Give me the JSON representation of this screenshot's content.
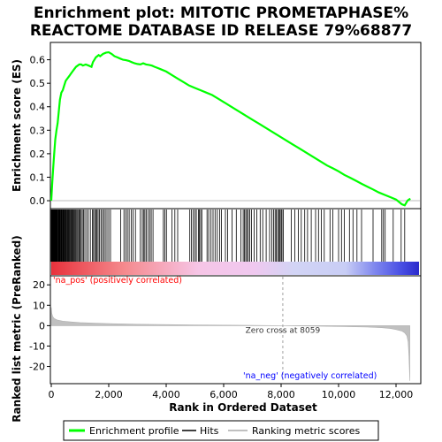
{
  "chart_data": {
    "type": "line",
    "title_lines": [
      "Enrichment plot: MITOTIC PROMETAPHASE%",
      "REACTOME DATABASE ID RELEASE 79%68877"
    ],
    "top_panel": {
      "ylabel": "Enrichment score (ES)",
      "ylim": [
        -0.03,
        0.67
      ],
      "yticks": [
        0.0,
        0.1,
        0.2,
        0.3,
        0.4,
        0.5,
        0.6
      ],
      "ytick_labels": [
        "0.0",
        "0.1",
        "0.2",
        "0.3",
        "0.4",
        "0.5",
        "0.6"
      ],
      "series": [
        {
          "name": "Enrichment profile",
          "color": "#00ff00",
          "x": [
            0,
            30,
            60,
            100,
            140,
            180,
            220,
            260,
            300,
            350,
            400,
            450,
            500,
            560,
            620,
            680,
            740,
            800,
            860,
            920,
            980,
            1040,
            1100,
            1200,
            1300,
            1400,
            1450,
            1500,
            1550,
            1600,
            1650,
            1700,
            1800,
            1900,
            2000,
            2100,
            2200,
            2300,
            2400,
            2500,
            2600,
            2700,
            2800,
            2900,
            3000,
            3100,
            3200,
            3300,
            3400,
            3500,
            3600,
            3700,
            3800,
            4000,
            4200,
            4400,
            4600,
            4800,
            5000,
            5200,
            5400,
            5600,
            5800,
            6000,
            6200,
            6400,
            6600,
            6800,
            7000,
            7200,
            7400,
            7600,
            7800,
            8000,
            8200,
            8400,
            8600,
            8800,
            9000,
            9200,
            9400,
            9600,
            9800,
            10000,
            10200,
            10400,
            10600,
            10800,
            11000,
            11200,
            11400,
            11600,
            11800,
            12000,
            12100,
            12200,
            12300,
            12350,
            12400,
            12450,
            12500
          ],
          "y": [
            0.0,
            0.07,
            0.13,
            0.2,
            0.26,
            0.3,
            0.33,
            0.38,
            0.43,
            0.46,
            0.47,
            0.49,
            0.51,
            0.52,
            0.53,
            0.54,
            0.55,
            0.56,
            0.57,
            0.575,
            0.58,
            0.58,
            0.575,
            0.58,
            0.575,
            0.57,
            0.59,
            0.6,
            0.61,
            0.615,
            0.62,
            0.615,
            0.625,
            0.63,
            0.632,
            0.625,
            0.615,
            0.61,
            0.605,
            0.6,
            0.598,
            0.595,
            0.59,
            0.585,
            0.582,
            0.58,
            0.585,
            0.58,
            0.578,
            0.575,
            0.57,
            0.565,
            0.56,
            0.55,
            0.535,
            0.52,
            0.505,
            0.49,
            0.48,
            0.47,
            0.46,
            0.45,
            0.435,
            0.42,
            0.405,
            0.39,
            0.375,
            0.36,
            0.345,
            0.33,
            0.315,
            0.3,
            0.285,
            0.27,
            0.255,
            0.24,
            0.225,
            0.21,
            0.195,
            0.18,
            0.165,
            0.15,
            0.138,
            0.125,
            0.11,
            0.098,
            0.085,
            0.072,
            0.06,
            0.048,
            0.035,
            0.025,
            0.015,
            0.005,
            -0.005,
            -0.015,
            -0.02,
            -0.01,
            0.0,
            0.005,
            0.008
          ]
        }
      ]
    },
    "hits_panel": {
      "hit_ranks": [
        0,
        8,
        16,
        24,
        32,
        40,
        50,
        60,
        72,
        85,
        98,
        112,
        128,
        145,
        160,
        178,
        195,
        212,
        230,
        250,
        268,
        288,
        305,
        325,
        345,
        365,
        385,
        405,
        428,
        450,
        470,
        492,
        515,
        538,
        560,
        585,
        610,
        635,
        660,
        688,
        715,
        742,
        770,
        800,
        830,
        860,
        895,
        930,
        965,
        1000,
        1040,
        1080,
        1120,
        1170,
        1230,
        1290,
        1360,
        1430,
        1470,
        1510,
        1550,
        1590,
        1630,
        1680,
        1730,
        1780,
        1830,
        1880,
        1940,
        2000,
        2060,
        2420,
        2530,
        2590,
        2650,
        2710,
        2780,
        2850,
        2930,
        3100,
        3170,
        3220,
        3260,
        3310,
        3370,
        3430,
        3480,
        3540,
        3900,
        3950,
        4010,
        4200,
        4300,
        4400,
        4820,
        4880,
        4940,
        5000,
        5050,
        5120,
        5150,
        5200,
        5240,
        5420,
        5480,
        5560,
        5630,
        5700,
        5780,
        5860,
        5920,
        6060,
        6140,
        6290,
        6440,
        6600,
        6680,
        6720,
        6770,
        6810,
        6860,
        6910,
        6970,
        7060,
        7150,
        7270,
        7360,
        7480,
        7600,
        7680,
        7740,
        7790,
        7830,
        7880,
        7920,
        7960,
        8000,
        8030,
        8080,
        8350,
        8480,
        8600,
        8700,
        8820,
        8920,
        9050,
        9200,
        9300,
        9400,
        9500,
        9700,
        9800,
        10000,
        10100,
        10200,
        10380,
        10500,
        10640,
        10800,
        11200,
        11500,
        11560,
        11620,
        11900,
        12180,
        12300
      ]
    },
    "bottom_panel": {
      "ylabel": "Ranked list metric (PreRanked)",
      "xlabel": "Rank in Ordered Dataset",
      "ylim": [
        -28,
        24
      ],
      "yticks": [
        20,
        10,
        0,
        -10,
        -20
      ],
      "ytick_labels": [
        "20",
        "10",
        "0",
        "-10",
        "-20"
      ],
      "xlim": [
        0,
        12800
      ],
      "xticks": [
        0,
        2000,
        4000,
        6000,
        8000,
        10000,
        12000
      ],
      "xtick_labels": [
        "0",
        "2,000",
        "4,000",
        "6,000",
        "8,000",
        "10,000",
        "12,000"
      ],
      "metric_profile": {
        "x": [
          0,
          20,
          50,
          100,
          200,
          400,
          700,
          1000,
          1500,
          2000,
          3000,
          4000,
          5000,
          6000,
          7000,
          8059,
          9000,
          10000,
          11000,
          11500,
          11800,
          12000,
          12200,
          12300,
          12380,
          12420,
          12450,
          12480
        ],
        "y": [
          9,
          6,
          4.5,
          3.5,
          2.8,
          2.2,
          1.8,
          1.5,
          1.2,
          1.0,
          0.7,
          0.5,
          0.35,
          0.25,
          0.12,
          0.0,
          -0.2,
          -0.4,
          -0.7,
          -1.0,
          -1.4,
          -1.9,
          -2.6,
          -3.5,
          -5,
          -8,
          -15,
          -27
        ]
      },
      "zero_cross_label": "Zero cross at 8059",
      "zero_cross_rank": 8059,
      "pos_label": "'na_pos' (positively correlated)",
      "neg_label": "'na_neg' (negatively correlated)"
    },
    "legend": {
      "items": [
        {
          "label": "Enrichment profile",
          "color": "#00ff00"
        },
        {
          "label": "Hits",
          "color": "#000000"
        },
        {
          "label": "Ranking metric scores",
          "color": "#c0c0c0"
        }
      ]
    },
    "colors": {
      "pos_band": "#ff0000",
      "neg_band": "#0000ff",
      "pos_text": "#ff0000",
      "neg_text": "#0000ff"
    }
  }
}
